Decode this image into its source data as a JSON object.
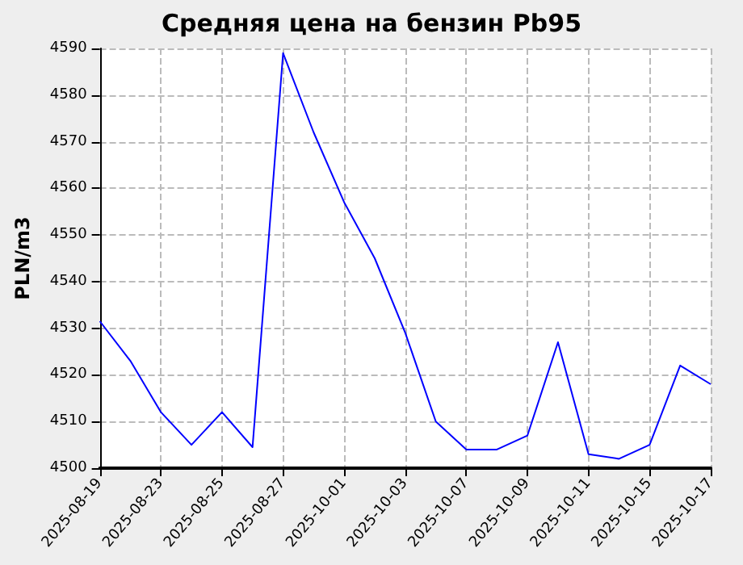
{
  "chart_data": {
    "type": "line",
    "title": "Средняя цена на бензин Pb95",
    "ylabel": "PLN/m3",
    "categories": [
      "2025-08-19",
      null,
      "2025-08-23",
      null,
      "2025-08-25",
      null,
      "2025-08-27",
      null,
      "2025-10-01",
      null,
      "2025-10-03",
      null,
      "2025-10-07",
      null,
      "2025-10-09",
      null,
      "2025-10-11",
      null,
      "2025-10-15",
      null,
      "2025-10-17"
    ],
    "series": [
      {
        "color": "#0000ff",
        "values": [
          4531.5,
          4523,
          4512,
          4505,
          4512,
          4504.5,
          4589,
          4572,
          4557,
          4545,
          4529,
          4510,
          4504,
          4504,
          4507,
          4527,
          4503,
          4502,
          4505,
          4522,
          4518
        ]
      }
    ],
    "ylim": [
      4500,
      4590
    ],
    "yticks": [
      4500,
      4510,
      4520,
      4530,
      4540,
      4550,
      4560,
      4570,
      4580,
      4590
    ],
    "grid": true,
    "marker": "none",
    "line_style": "solid"
  }
}
